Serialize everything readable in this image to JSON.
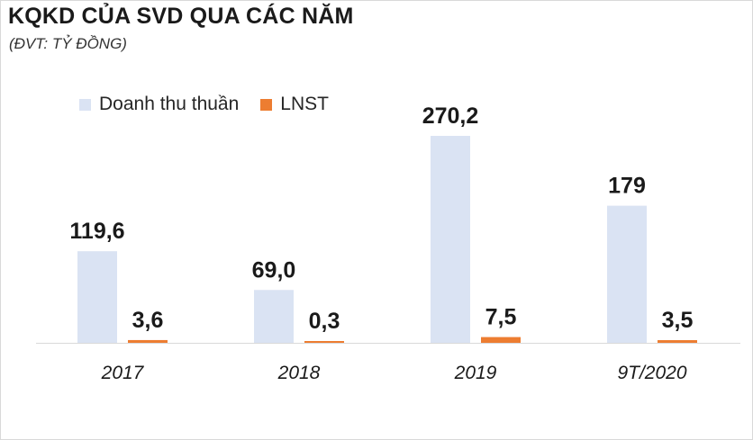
{
  "title": "KQKD CỦA SVD QUA CÁC NĂM",
  "subtitle": "(ĐVT: TỶ ĐỒNG)",
  "chart_data": {
    "type": "bar",
    "categories": [
      "2017",
      "2018",
      "2019",
      "9T/2020"
    ],
    "series": [
      {
        "name": "Doanh thu thuần",
        "values": [
          119.6,
          69.0,
          270.2,
          179
        ],
        "labels": [
          "119,6",
          "69,0",
          "270,2",
          "179"
        ],
        "color": "#dae3f3"
      },
      {
        "name": "LNST",
        "values": [
          3.6,
          0.3,
          7.5,
          3.5
        ],
        "labels": [
          "3,6",
          "0,3",
          "7,5",
          "3,5"
        ],
        "color": "#ed7d31"
      }
    ],
    "ylim": [
      0,
      270.2
    ],
    "grid": false,
    "legend_position": "top-left"
  },
  "colors": {
    "axis": "#d9d9d9"
  }
}
